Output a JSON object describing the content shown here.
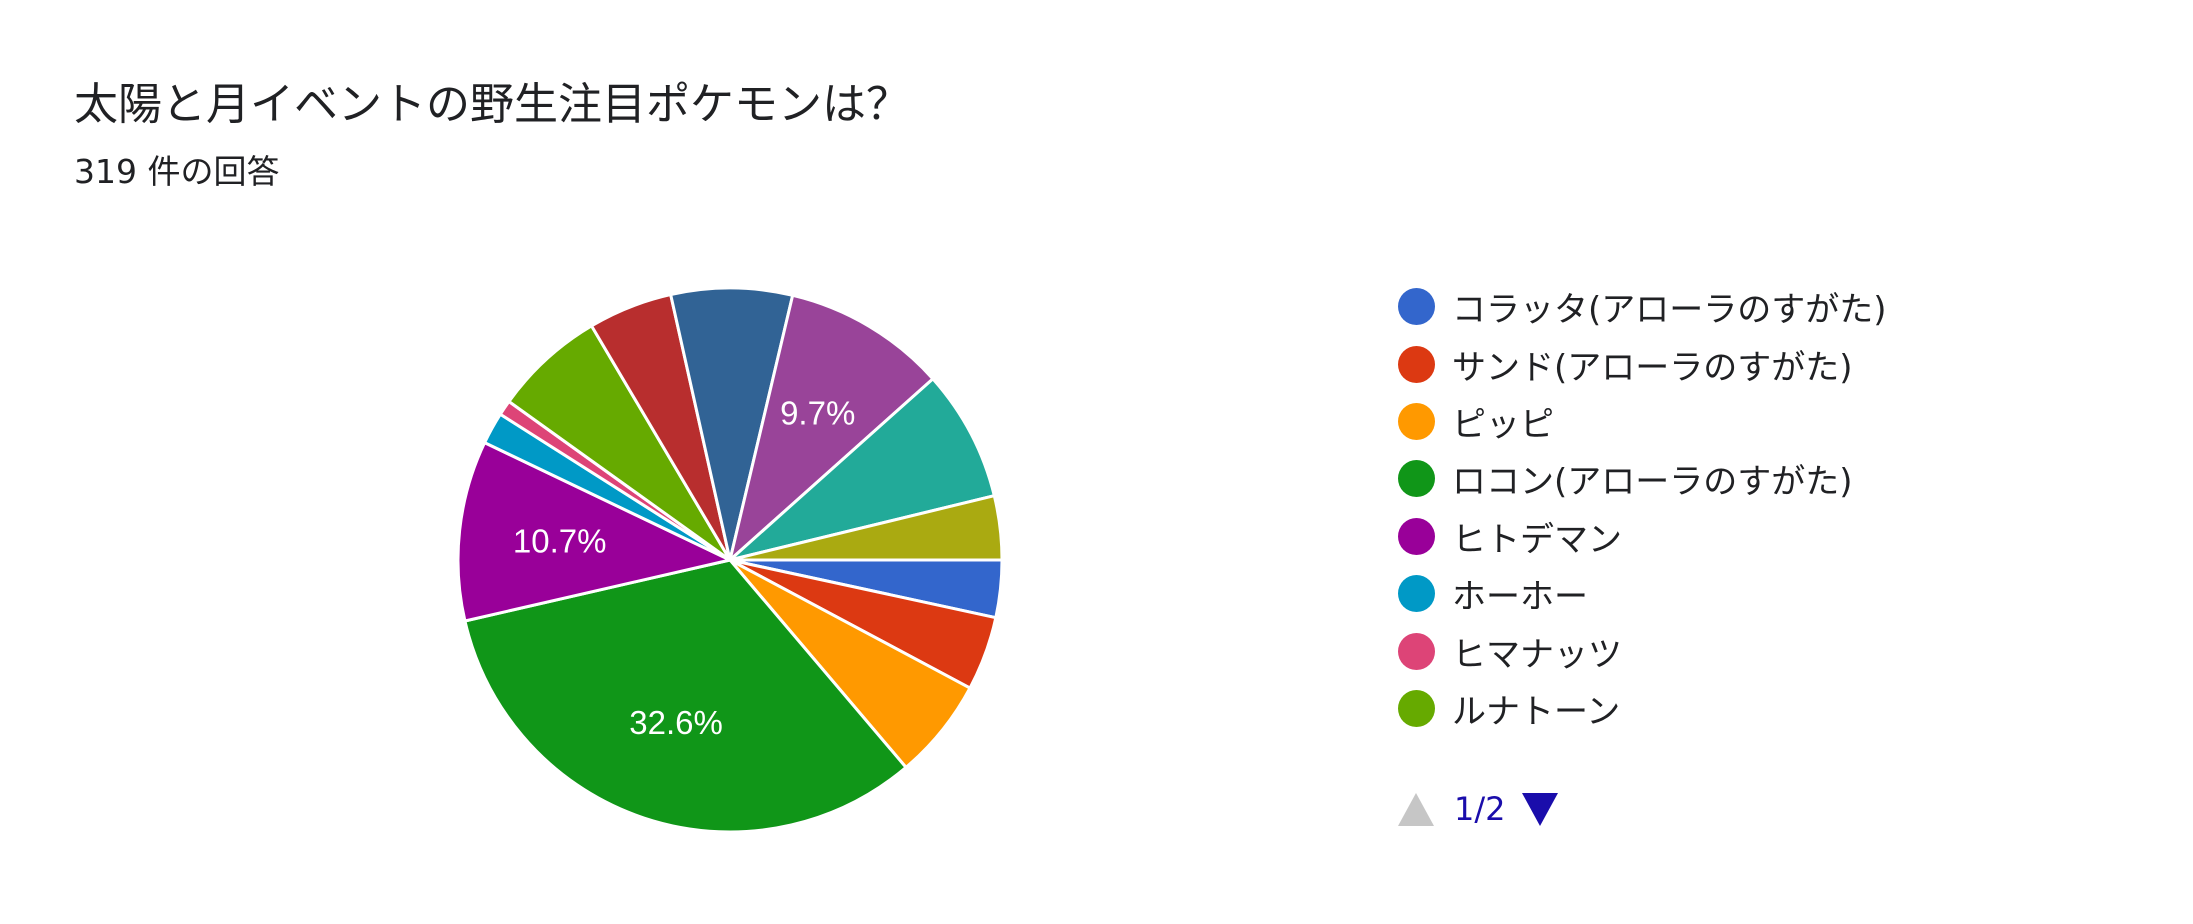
{
  "title": "太陽と月イベントの野生注目ポケモンは？",
  "subtitle": "319 件の回答",
  "chart_data": {
    "type": "pie",
    "title": "太陽と月イベントの野生注目ポケモンは？",
    "total_responses": 319,
    "slices": [
      {
        "name": "コラッタ(アローラのすがた)",
        "percent": 3.4,
        "color": "#3366cc"
      },
      {
        "name": "サンド(アローラのすがた)",
        "percent": 4.4,
        "color": "#dc3912"
      },
      {
        "name": "ピッピ",
        "percent": 6.0,
        "color": "#ff9900"
      },
      {
        "name": "ロコン(アローラのすがた)",
        "percent": 32.6,
        "color": "#109618",
        "label": "32.6%"
      },
      {
        "name": "ヒトデマン",
        "percent": 10.7,
        "color": "#990099",
        "label": "10.7%"
      },
      {
        "name": "ホーホー",
        "percent": 1.9,
        "color": "#0099c6"
      },
      {
        "name": "ヒマナッツ",
        "percent": 0.9,
        "color": "#dd4477"
      },
      {
        "name": "ルナトーン",
        "percent": 6.6,
        "color": "#66aa00"
      },
      {
        "name": "",
        "percent": 5.0,
        "color": "#b82e2e"
      },
      {
        "name": "",
        "percent": 7.2,
        "color": "#316395"
      },
      {
        "name": "",
        "percent": 9.7,
        "color": "#994499",
        "label": "9.7%"
      },
      {
        "name": "",
        "percent": 7.8,
        "color": "#22aa99"
      },
      {
        "name": "",
        "percent": 3.8,
        "color": "#aaaa11"
      }
    ],
    "legend_position": "right"
  },
  "legend": {
    "items": [
      {
        "label": "コラッタ(アローラのすがた)",
        "color": "#3366cc"
      },
      {
        "label": "サンド(アローラのすがた)",
        "color": "#dc3912"
      },
      {
        "label": "ピッピ",
        "color": "#ff9900"
      },
      {
        "label": "ロコン(アローラのすがた)",
        "color": "#109618"
      },
      {
        "label": "ヒトデマン",
        "color": "#990099"
      },
      {
        "label": "ホーホー",
        "color": "#0099c6"
      },
      {
        "label": "ヒマナッツ",
        "color": "#dd4477"
      },
      {
        "label": "ルナトーン",
        "color": "#66aa00"
      }
    ],
    "pager": {
      "text": "1/2",
      "up_icon": "triangle-up-icon",
      "down_icon": "triangle-down-icon",
      "up_color": "#c6c6c6",
      "down_color": "#1a0dab"
    }
  }
}
